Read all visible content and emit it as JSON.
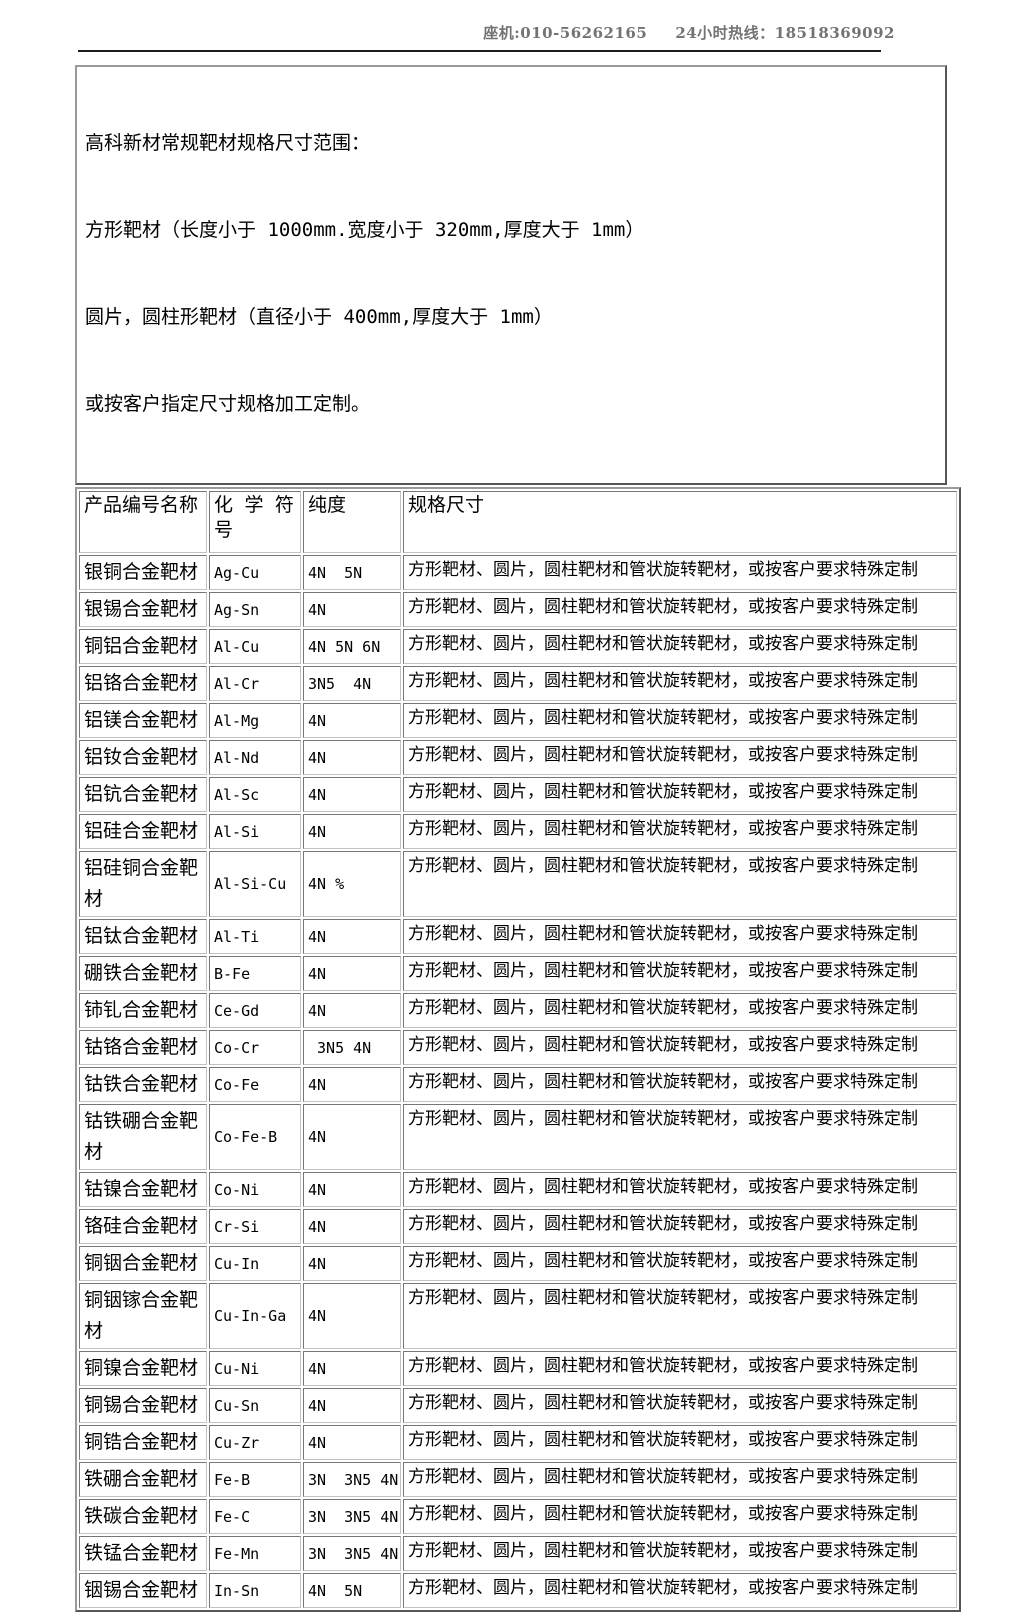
{
  "header": {
    "phone_label": "座机:010-56262165",
    "hotline_label": "24小时热线：18518369092"
  },
  "intro": {
    "line1": "高科新材常规靶材规格尺寸范围：",
    "line2": "方形靶材（长度小于 1000mm.宽度小于 320mm,厚度大于 1mm）",
    "line3": "圆片，圆柱形靶材（直径小于 400mm,厚度大于 1mm）",
    "line4": "或按客户指定尺寸规格加工定制。"
  },
  "table": {
    "columns": [
      "产品编号名称",
      "化 学 符号",
      "纯度",
      "规格尺寸"
    ],
    "rows": [
      {
        "name": "银铜合金靶材",
        "symbol": "Ag-Cu",
        "purity": "4N  5N",
        "spec": "方形靶材、圆片，圆柱靶材和管状旋转靶材，或按客户要求特殊定制"
      },
      {
        "name": "银锡合金靶材",
        "symbol": "Ag-Sn",
        "purity": "4N",
        "spec": "方形靶材、圆片，圆柱靶材和管状旋转靶材，或按客户要求特殊定制"
      },
      {
        "name": "铜铝合金靶材",
        "symbol": "Al-Cu",
        "purity": "4N 5N 6N",
        "spec": "方形靶材、圆片，圆柱靶材和管状旋转靶材，或按客户要求特殊定制"
      },
      {
        "name": "铝铬合金靶材",
        "symbol": "Al-Cr",
        "purity": "3N5  4N",
        "spec": "方形靶材、圆片，圆柱靶材和管状旋转靶材，或按客户要求特殊定制"
      },
      {
        "name": "铝镁合金靶材",
        "symbol": "Al-Mg",
        "purity": "4N",
        "spec": "方形靶材、圆片，圆柱靶材和管状旋转靶材，或按客户要求特殊定制"
      },
      {
        "name": "铝钕合金靶材",
        "symbol": "Al-Nd",
        "purity": "4N",
        "spec": "方形靶材、圆片，圆柱靶材和管状旋转靶材，或按客户要求特殊定制"
      },
      {
        "name": "铝钪合金靶材",
        "symbol": "Al-Sc",
        "purity": "4N",
        "spec": "方形靶材、圆片，圆柱靶材和管状旋转靶材，或按客户要求特殊定制"
      },
      {
        "name": "铝硅合金靶材",
        "symbol": "Al-Si",
        "purity": "4N",
        "spec": "方形靶材、圆片，圆柱靶材和管状旋转靶材，或按客户要求特殊定制"
      },
      {
        "name": "铝硅铜合金靶材",
        "symbol": "Al-Si-Cu",
        "purity": "4N %",
        "spec": "方形靶材、圆片，圆柱靶材和管状旋转靶材，或按客户要求特殊定制"
      },
      {
        "name": "铝钛合金靶材",
        "symbol": "Al-Ti",
        "purity": "4N",
        "spec": "方形靶材、圆片，圆柱靶材和管状旋转靶材，或按客户要求特殊定制"
      },
      {
        "name": "硼铁合金靶材",
        "symbol": "B-Fe",
        "purity": "4N",
        "spec": "方形靶材、圆片，圆柱靶材和管状旋转靶材，或按客户要求特殊定制"
      },
      {
        "name": "铈钆合金靶材",
        "symbol": "Ce-Gd",
        "purity": "4N",
        "spec": "方形靶材、圆片，圆柱靶材和管状旋转靶材，或按客户要求特殊定制"
      },
      {
        "name": "钴铬合金靶材",
        "symbol": "Co-Cr",
        "purity": " 3N5 4N",
        "spec": "方形靶材、圆片，圆柱靶材和管状旋转靶材，或按客户要求特殊定制"
      },
      {
        "name": "钴铁合金靶材",
        "symbol": "Co-Fe",
        "purity": "4N",
        "spec": "方形靶材、圆片，圆柱靶材和管状旋转靶材，或按客户要求特殊定制"
      },
      {
        "name": "钴铁硼合金靶材",
        "symbol": "Co-Fe-B",
        "purity": "4N",
        "spec": "方形靶材、圆片，圆柱靶材和管状旋转靶材，或按客户要求特殊定制"
      },
      {
        "name": "钴镍合金靶材",
        "symbol": "Co-Ni",
        "purity": "4N",
        "spec": "方形靶材、圆片，圆柱靶材和管状旋转靶材，或按客户要求特殊定制"
      },
      {
        "name": "铬硅合金靶材",
        "symbol": "Cr-Si",
        "purity": "4N",
        "spec": "方形靶材、圆片，圆柱靶材和管状旋转靶材，或按客户要求特殊定制"
      },
      {
        "name": "铜铟合金靶材",
        "symbol": "Cu-In",
        "purity": "4N",
        "spec": "方形靶材、圆片，圆柱靶材和管状旋转靶材，或按客户要求特殊定制"
      },
      {
        "name": "铜铟镓合金靶材",
        "symbol": "Cu-In-Ga",
        "purity": "4N",
        "spec": "方形靶材、圆片，圆柱靶材和管状旋转靶材，或按客户要求特殊定制"
      },
      {
        "name": "铜镍合金靶材",
        "symbol": "Cu-Ni",
        "purity": "4N",
        "spec": "方形靶材、圆片，圆柱靶材和管状旋转靶材，或按客户要求特殊定制"
      },
      {
        "name": "铜锡合金靶材",
        "symbol": "Cu-Sn",
        "purity": "4N",
        "spec": "方形靶材、圆片，圆柱靶材和管状旋转靶材，或按客户要求特殊定制"
      },
      {
        "name": "铜锆合金靶材",
        "symbol": "Cu-Zr",
        "purity": "4N",
        "spec": "方形靶材、圆片，圆柱靶材和管状旋转靶材，或按客户要求特殊定制"
      },
      {
        "name": "铁硼合金靶材",
        "symbol": "Fe-B",
        "purity": "3N  3N5 4N",
        "spec": "方形靶材、圆片，圆柱靶材和管状旋转靶材，或按客户要求特殊定制"
      },
      {
        "name": "铁碳合金靶材",
        "symbol": "Fe-C",
        "purity": "3N  3N5 4N",
        "spec": "方形靶材、圆片，圆柱靶材和管状旋转靶材，或按客户要求特殊定制"
      },
      {
        "name": "铁锰合金靶材",
        "symbol": "Fe-Mn",
        "purity": "3N  3N5 4N",
        "spec": "方形靶材、圆片，圆柱靶材和管状旋转靶材，或按客户要求特殊定制"
      },
      {
        "name": "铟锡合金靶材",
        "symbol": "In-Sn",
        "purity": "4N  5N",
        "spec": "方形靶材、圆片，圆柱靶材和管状旋转靶材，或按客户要求特殊定制"
      }
    ]
  }
}
